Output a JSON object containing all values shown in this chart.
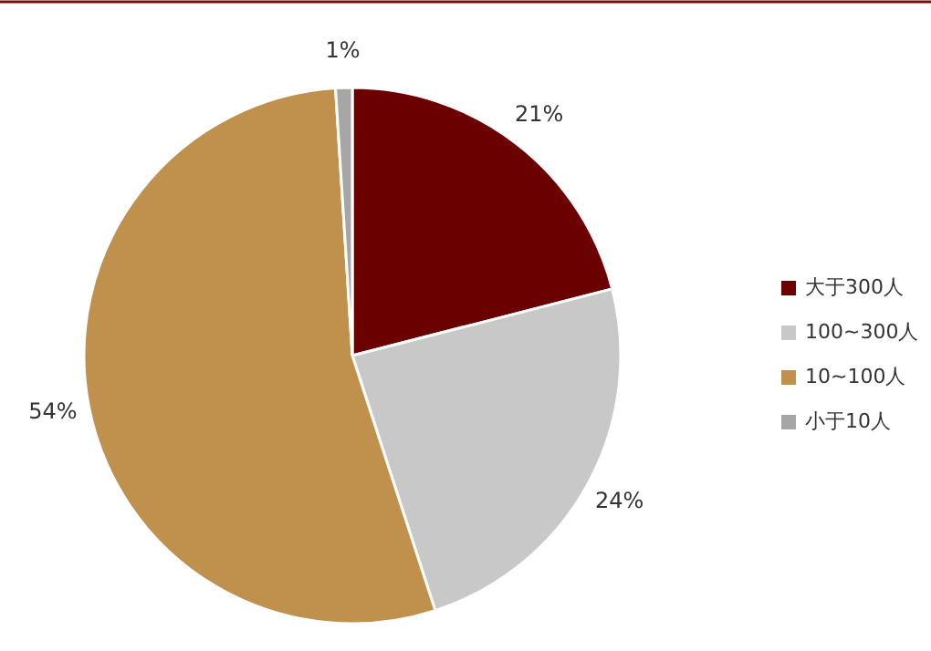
{
  "chart_data": {
    "type": "pie",
    "categories": [
      "大于300人",
      "100~300人",
      "10~100人",
      "小于10人"
    ],
    "values": [
      21,
      24,
      54,
      1
    ],
    "colors": [
      "#6b0000",
      "#c8c8c8",
      "#c0904d",
      "#a6a6a6"
    ],
    "value_labels": [
      "21%",
      "24%",
      "54%",
      "1%"
    ],
    "legend": "right"
  }
}
